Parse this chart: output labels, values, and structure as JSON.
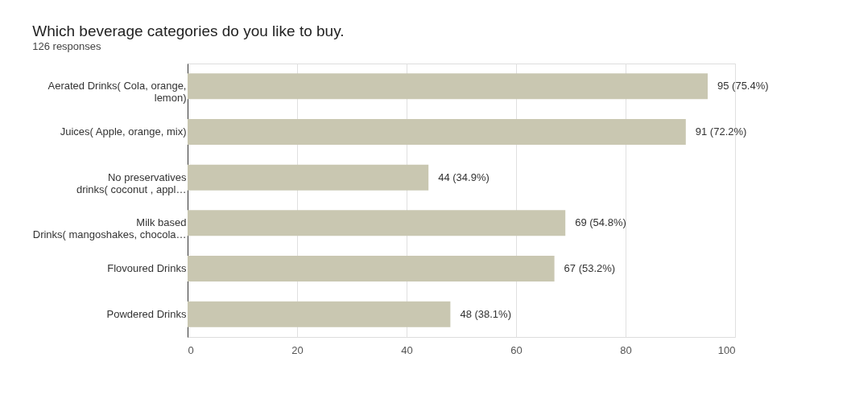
{
  "chart_data": {
    "type": "bar",
    "orientation": "horizontal",
    "title": "Which beverage categories do you like to buy.",
    "subtitle": "126 responses",
    "categories": [
      "Aerated Drinks( Cola, orange,\nlemon)",
      "Juices( Apple, orange, mix)",
      "No preservatives\ndrinks( coconut , appl…",
      "Milk based\nDrinks( mangoshakes, chocola…",
      "Flovoured Drinks",
      "Powdered Drinks"
    ],
    "values": [
      95,
      91,
      44,
      69,
      67,
      48
    ],
    "value_labels": [
      "95 (75.4%)",
      "91 (72.2%)",
      "44 (34.9%)",
      "69 (54.8%)",
      "67 (53.2%)",
      "48 (38.1%)"
    ],
    "color": "#c9c7b1",
    "xlim": [
      0,
      100
    ],
    "xticks": [
      0,
      20,
      40,
      60,
      80,
      100
    ],
    "grid": "x"
  }
}
